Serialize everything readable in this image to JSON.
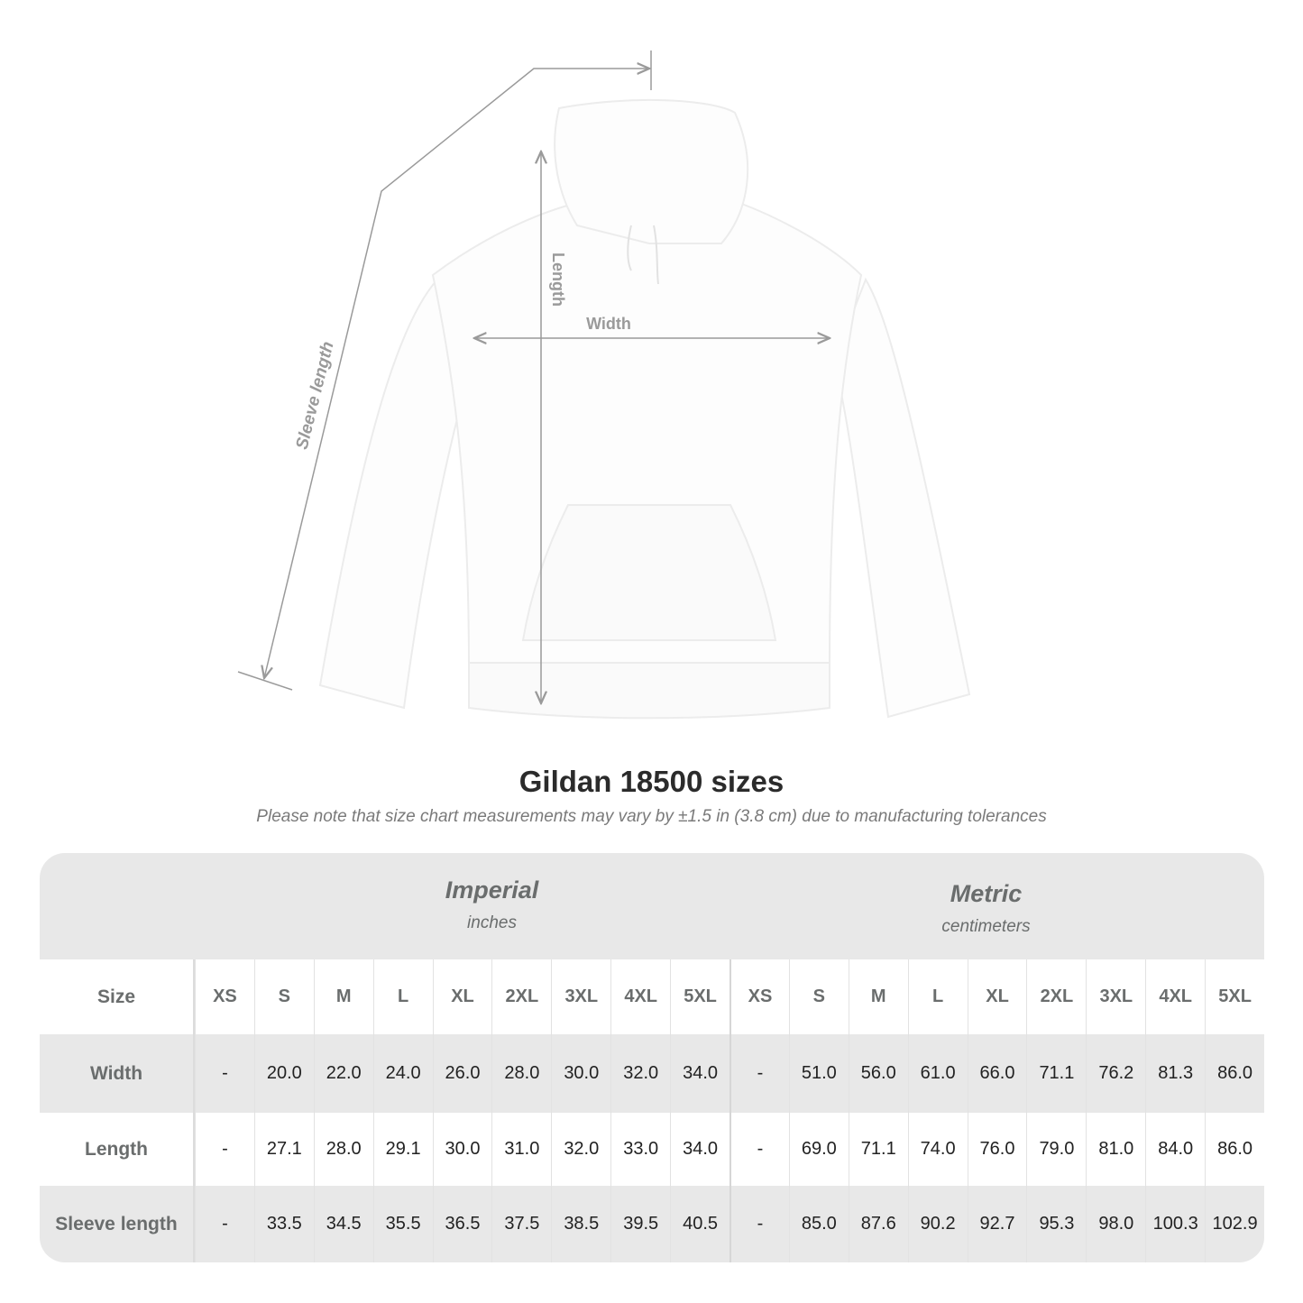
{
  "figure": {
    "labels": {
      "sleeve_length": "Sleeve length",
      "length": "Length",
      "width": "Width"
    },
    "garment_color": "#ffffff",
    "line_color": "#9a9a9a"
  },
  "title": "Gildan 18500 sizes",
  "note": "Please note that size chart measurements may vary by ±1.5 in (3.8 cm) due to manufacturing tolerances",
  "table": {
    "imperial": {
      "name": "Imperial",
      "unit": "inches"
    },
    "metric": {
      "name": "Metric",
      "unit": "centimeters"
    },
    "size_label": "Size",
    "sizes": [
      "XS",
      "S",
      "M",
      "L",
      "XL",
      "2XL",
      "3XL",
      "4XL",
      "5XL"
    ],
    "rows": [
      {
        "label": "Width",
        "imperial": [
          "-",
          "20.0",
          "22.0",
          "24.0",
          "26.0",
          "28.0",
          "30.0",
          "32.0",
          "34.0"
        ],
        "metric": [
          "-",
          "51.0",
          "56.0",
          "61.0",
          "66.0",
          "71.1",
          "76.2",
          "81.3",
          "86.0"
        ]
      },
      {
        "label": "Length",
        "imperial": [
          "-",
          "27.1",
          "28.0",
          "29.1",
          "30.0",
          "31.0",
          "32.0",
          "33.0",
          "34.0"
        ],
        "metric": [
          "-",
          "69.0",
          "71.1",
          "74.0",
          "76.0",
          "79.0",
          "81.0",
          "84.0",
          "86.0"
        ]
      },
      {
        "label": "Sleeve length",
        "imperial": [
          "-",
          "33.5",
          "34.5",
          "35.5",
          "36.5",
          "37.5",
          "38.5",
          "39.5",
          "40.5"
        ],
        "metric": [
          "-",
          "85.0",
          "87.6",
          "90.2",
          "92.7",
          "95.3",
          "98.0",
          "100.3",
          "102.9"
        ]
      }
    ]
  }
}
